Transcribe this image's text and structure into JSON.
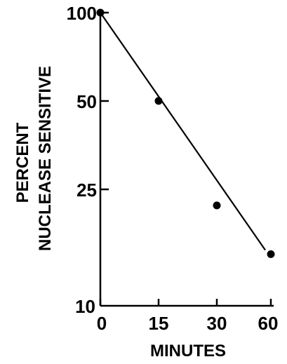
{
  "chart_data": {
    "type": "scatter",
    "xlabel": "MINUTES",
    "ylabel_lines": [
      "PERCENT",
      "NUCLEASE SENSITIVE"
    ],
    "y_scale": "log",
    "x_tick_labels": [
      "0",
      "15",
      "30",
      "60"
    ],
    "y_ticks": [
      100,
      50,
      25,
      10
    ],
    "y_tick_labels": [
      "100",
      "50",
      "25",
      "10"
    ],
    "ylim": [
      10,
      100
    ],
    "points": [
      {
        "x": "0",
        "y": 100
      },
      {
        "x": "15",
        "y": 50
      },
      {
        "x": "30",
        "y": 22
      },
      {
        "x": "60",
        "y": 15
      }
    ],
    "fit_line": {
      "from": {
        "x": "0",
        "y": 100
      },
      "to": {
        "x": "60",
        "y": 15.5
      }
    },
    "grid": false,
    "legend": "none"
  }
}
